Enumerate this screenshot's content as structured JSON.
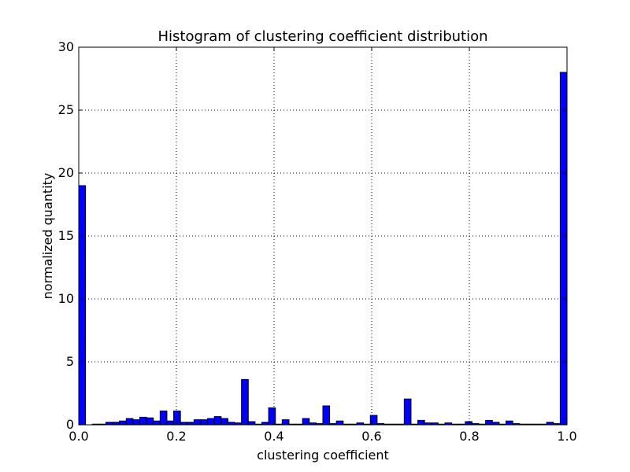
{
  "chart_data": {
    "type": "bar",
    "title": "Histogram of clustering coefficient distribution",
    "xlabel": "clustering coefficient",
    "ylabel": "normalized quantity",
    "xlim": [
      0.0,
      1.0
    ],
    "ylim": [
      0,
      30
    ],
    "x_ticks": [
      "0.0",
      "0.2",
      "0.4",
      "0.6",
      "0.8",
      "1.0"
    ],
    "y_ticks": [
      "0",
      "5",
      "10",
      "15",
      "20",
      "25",
      "30"
    ],
    "grid": true,
    "bar_color": "#0000ff",
    "bin_edges_start": 0.0,
    "bin_width": 0.01389,
    "values": [
      19.0,
      0.0,
      0.05,
      0.05,
      0.2,
      0.2,
      0.3,
      0.5,
      0.4,
      0.6,
      0.55,
      0.3,
      1.1,
      0.3,
      1.1,
      0.2,
      0.2,
      0.4,
      0.4,
      0.5,
      0.65,
      0.5,
      0.2,
      0.15,
      3.6,
      0.25,
      0.05,
      0.2,
      1.35,
      0.05,
      0.4,
      0.05,
      0.05,
      0.5,
      0.15,
      0.1,
      1.5,
      0.1,
      0.3,
      0.05,
      0.05,
      0.15,
      0.05,
      0.75,
      0.1,
      0.05,
      0.05,
      0.05,
      2.05,
      0.05,
      0.35,
      0.15,
      0.15,
      0.05,
      0.15,
      0.05,
      0.05,
      0.25,
      0.1,
      0.05,
      0.35,
      0.2,
      0.05,
      0.3,
      0.1,
      0.05,
      0.05,
      0.05,
      0.05,
      0.2,
      0.1,
      28.0
    ]
  }
}
